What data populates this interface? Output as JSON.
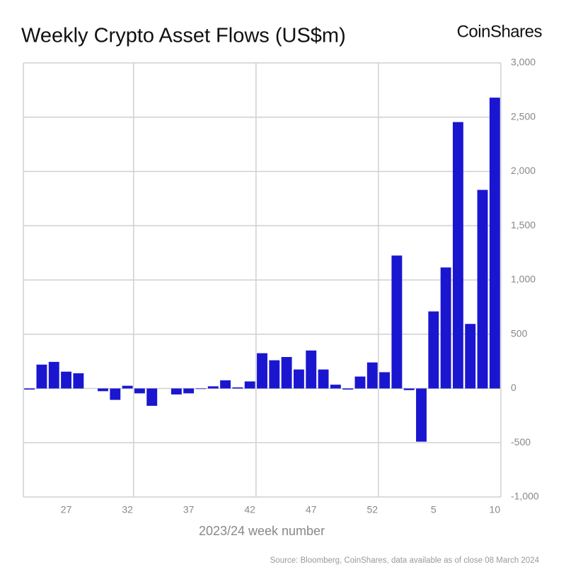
{
  "chart_data": {
    "type": "bar",
    "title": "Weekly Crypto Asset Flows (US$m)",
    "brand": "CoinShares",
    "x_label": "2023/24 week number",
    "source": "Source: Bloomberg, CoinShares, data available as of close 08 March 2024",
    "categories": [
      null,
      null,
      null,
      "27",
      null,
      null,
      null,
      null,
      "32",
      null,
      null,
      null,
      null,
      "37",
      null,
      null,
      null,
      null,
      "42",
      null,
      null,
      null,
      null,
      "47",
      null,
      null,
      null,
      null,
      "52",
      null,
      null,
      null,
      null,
      "5",
      null,
      null,
      null,
      null,
      "10"
    ],
    "values": [
      -10,
      220,
      245,
      155,
      140,
      0,
      -25,
      -105,
      25,
      -45,
      -160,
      0,
      -55,
      -45,
      -5,
      20,
      75,
      10,
      65,
      325,
      260,
      290,
      175,
      350,
      175,
      35,
      -10,
      110,
      240,
      150,
      1225,
      -15,
      -490,
      710,
      1115,
      2455,
      595,
      1830,
      2680
    ],
    "color": "#1a16d0",
    "ylim": [
      -1000,
      3000
    ],
    "yticks": [
      {
        "value": -1000,
        "label": "-1,000"
      },
      -500,
      0,
      500,
      {
        "value": 1000,
        "label": "1,000"
      },
      {
        "value": 1500,
        "label": "1,500"
      },
      {
        "value": 2000,
        "label": "2,000"
      },
      {
        "value": 2500,
        "label": "2,500"
      },
      {
        "value": 3000,
        "label": "3,000"
      }
    ],
    "grid": true
  }
}
